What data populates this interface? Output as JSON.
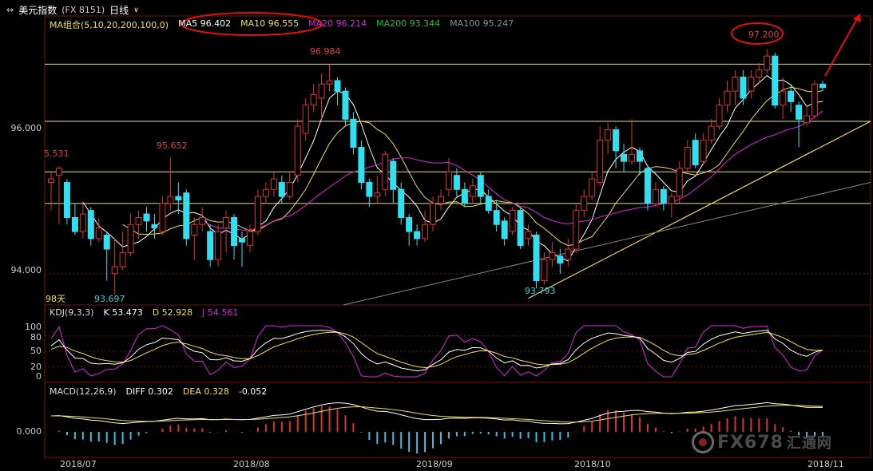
{
  "header": {
    "menu_icon": "resize-icon",
    "instrument_name": "美元指数",
    "instrument_code": "(FX 8151)",
    "period": "日线",
    "dropdown_icon": "chevron-down-icon"
  },
  "ma_legend": {
    "group_label": "MA组合(5,10,20,200,100,0)",
    "items": [
      {
        "text": "MA5 96.402",
        "color": "#ffffff"
      },
      {
        "text": "MA10 96.555",
        "color": "#f0e040"
      },
      {
        "text": "MA20 96.214",
        "color": "#e020e0"
      },
      {
        "text": "MA200 93.344",
        "color": "#20c020"
      },
      {
        "text": "MA100 95.247",
        "color": "#909090"
      }
    ]
  },
  "kdj_legend": {
    "group_label": "KDJ(9,3,3)",
    "items": [
      {
        "text": "K 53.473",
        "color": "#ffffff"
      },
      {
        "text": "D 52.928",
        "color": "#f0e040"
      },
      {
        "text": "J 54.561",
        "color": "#e020e0"
      }
    ]
  },
  "macd_legend": {
    "group_label": "MACD(12,26,9)",
    "items": [
      {
        "text": "DIFF 0.302",
        "color": "#ffffff"
      },
      {
        "text": "DEA 0.328",
        "color": "#f0e040"
      },
      {
        "text": "-0.052",
        "color": "#ffffff"
      }
    ]
  },
  "price_axis": {
    "labels": [
      "96.000",
      "94.000"
    ]
  },
  "kdj_axis": {
    "labels": [
      "100",
      "80",
      "50",
      "20",
      "0"
    ]
  },
  "macd_axis": {
    "labels": [
      "0.000"
    ]
  },
  "annotations": {
    "high_jul": "95.652",
    "left_edge": "5.531",
    "low_jul": "93.697",
    "high_aug": "96.984",
    "low_sep": "93.793",
    "high_nov": "97.200",
    "days_label": "98天"
  },
  "watermark": {
    "brand": "FX678",
    "cn": "汇通网"
  },
  "chart_data": {
    "type": "candlestick",
    "x_ticks": [
      "2018/07",
      "2018/08",
      "2018/09",
      "2018/10",
      "2018/11"
    ],
    "price_range": [
      93.6,
      97.5
    ],
    "horizontal_levels": [
      96.984,
      96.17,
      95.45,
      95.0
    ],
    "candles": [
      {
        "o": 95.3,
        "c": 95.35,
        "h": 95.45,
        "l": 94.9
      },
      {
        "o": 95.4,
        "c": 95.5,
        "h": 95.53,
        "l": 94.7
      },
      {
        "o": 95.3,
        "c": 94.8,
        "h": 95.35,
        "l": 94.7
      },
      {
        "o": 94.8,
        "c": 94.6,
        "h": 95.0,
        "l": 94.55
      },
      {
        "o": 94.6,
        "c": 94.85,
        "h": 95.0,
        "l": 94.5
      },
      {
        "o": 94.9,
        "c": 94.5,
        "h": 94.95,
        "l": 94.4
      },
      {
        "o": 94.5,
        "c": 94.65,
        "h": 94.8,
        "l": 94.45
      },
      {
        "o": 94.55,
        "c": 94.35,
        "h": 94.6,
        "l": 93.9
      },
      {
        "o": 94.0,
        "c": 94.1,
        "h": 94.5,
        "l": 93.7
      },
      {
        "o": 94.1,
        "c": 94.3,
        "h": 94.6,
        "l": 94.05
      },
      {
        "o": 94.3,
        "c": 94.7,
        "h": 94.85,
        "l": 94.25
      },
      {
        "o": 94.7,
        "c": 94.8,
        "h": 94.9,
        "l": 94.5
      },
      {
        "o": 94.85,
        "c": 94.75,
        "h": 94.95,
        "l": 94.6
      },
      {
        "o": 94.7,
        "c": 94.65,
        "h": 94.85,
        "l": 94.5
      },
      {
        "o": 94.6,
        "c": 95.0,
        "h": 95.1,
        "l": 94.55
      },
      {
        "o": 95.0,
        "c": 95.1,
        "h": 95.65,
        "l": 94.9
      },
      {
        "o": 95.1,
        "c": 95.05,
        "h": 95.3,
        "l": 94.85
      },
      {
        "o": 95.15,
        "c": 94.5,
        "h": 95.2,
        "l": 94.4
      },
      {
        "o": 94.55,
        "c": 94.7,
        "h": 94.8,
        "l": 94.2
      },
      {
        "o": 94.7,
        "c": 94.8,
        "h": 94.95,
        "l": 94.6
      },
      {
        "o": 94.6,
        "c": 94.2,
        "h": 94.7,
        "l": 94.1
      },
      {
        "o": 94.2,
        "c": 94.6,
        "h": 94.7,
        "l": 94.1
      },
      {
        "o": 94.65,
        "c": 94.8,
        "h": 94.9,
        "l": 94.3
      },
      {
        "o": 94.8,
        "c": 94.4,
        "h": 94.85,
        "l": 94.2
      },
      {
        "o": 94.5,
        "c": 94.45,
        "h": 94.6,
        "l": 94.1
      },
      {
        "o": 94.4,
        "c": 94.6,
        "h": 94.7,
        "l": 94.3
      },
      {
        "o": 94.6,
        "c": 95.1,
        "h": 95.2,
        "l": 94.55
      },
      {
        "o": 95.1,
        "c": 95.2,
        "h": 95.3,
        "l": 95.0
      },
      {
        "o": 95.2,
        "c": 95.35,
        "h": 95.45,
        "l": 95.1
      },
      {
        "o": 95.3,
        "c": 95.1,
        "h": 95.4,
        "l": 95.0
      },
      {
        "o": 95.1,
        "c": 95.3,
        "h": 95.45,
        "l": 95.05
      },
      {
        "o": 95.4,
        "c": 96.1,
        "h": 96.2,
        "l": 95.3
      },
      {
        "o": 96.0,
        "c": 96.4,
        "h": 96.5,
        "l": 95.9
      },
      {
        "o": 96.4,
        "c": 96.55,
        "h": 96.7,
        "l": 96.3
      },
      {
        "o": 96.5,
        "c": 96.7,
        "h": 96.85,
        "l": 96.2
      },
      {
        "o": 96.7,
        "c": 96.75,
        "h": 96.98,
        "l": 96.6
      },
      {
        "o": 96.75,
        "c": 96.6,
        "h": 96.8,
        "l": 96.4
      },
      {
        "o": 96.6,
        "c": 96.2,
        "h": 96.65,
        "l": 96.1
      },
      {
        "o": 96.2,
        "c": 95.8,
        "h": 96.3,
        "l": 95.7
      },
      {
        "o": 95.8,
        "c": 95.3,
        "h": 95.9,
        "l": 95.2
      },
      {
        "o": 95.3,
        "c": 95.1,
        "h": 95.35,
        "l": 94.95
      },
      {
        "o": 95.1,
        "c": 95.15,
        "h": 95.4,
        "l": 95.0
      },
      {
        "o": 95.2,
        "c": 95.7,
        "h": 95.75,
        "l": 95.1
      },
      {
        "o": 95.6,
        "c": 95.2,
        "h": 95.65,
        "l": 95.0
      },
      {
        "o": 95.2,
        "c": 94.8,
        "h": 95.3,
        "l": 94.7
      },
      {
        "o": 94.8,
        "c": 94.6,
        "h": 94.85,
        "l": 94.4
      },
      {
        "o": 94.6,
        "c": 94.5,
        "h": 94.7,
        "l": 94.4
      },
      {
        "o": 94.5,
        "c": 94.7,
        "h": 94.9,
        "l": 94.45
      },
      {
        "o": 94.7,
        "c": 95.0,
        "h": 95.1,
        "l": 94.6
      },
      {
        "o": 95.0,
        "c": 95.1,
        "h": 95.2,
        "l": 94.9
      },
      {
        "o": 95.2,
        "c": 95.45,
        "h": 95.65,
        "l": 95.1
      },
      {
        "o": 95.4,
        "c": 95.2,
        "h": 95.5,
        "l": 95.1
      },
      {
        "o": 95.2,
        "c": 95.0,
        "h": 95.3,
        "l": 94.95
      },
      {
        "o": 95.1,
        "c": 95.25,
        "h": 95.35,
        "l": 95.0
      },
      {
        "o": 95.4,
        "c": 95.1,
        "h": 95.45,
        "l": 95.0
      },
      {
        "o": 95.1,
        "c": 94.9,
        "h": 95.2,
        "l": 94.85
      },
      {
        "o": 94.9,
        "c": 94.7,
        "h": 95.05,
        "l": 94.6
      },
      {
        "o": 94.75,
        "c": 94.5,
        "h": 94.8,
        "l": 94.4
      },
      {
        "o": 94.6,
        "c": 94.9,
        "h": 94.95,
        "l": 94.55
      },
      {
        "o": 94.9,
        "c": 94.4,
        "h": 94.95,
        "l": 94.35
      },
      {
        "o": 94.5,
        "c": 94.6,
        "h": 94.7,
        "l": 94.4
      },
      {
        "o": 94.55,
        "c": 93.9,
        "h": 94.6,
        "l": 93.79
      },
      {
        "o": 93.9,
        "c": 94.2,
        "h": 94.3,
        "l": 93.85
      },
      {
        "o": 94.2,
        "c": 94.3,
        "h": 94.45,
        "l": 94.1
      },
      {
        "o": 94.25,
        "c": 94.15,
        "h": 94.35,
        "l": 94.0
      },
      {
        "o": 94.2,
        "c": 94.35,
        "h": 94.5,
        "l": 94.1
      },
      {
        "o": 94.35,
        "c": 94.9,
        "h": 95.0,
        "l": 94.3
      },
      {
        "o": 94.9,
        "c": 95.1,
        "h": 95.2,
        "l": 94.8
      },
      {
        "o": 95.1,
        "c": 95.35,
        "h": 95.45,
        "l": 95.05
      },
      {
        "o": 95.3,
        "c": 95.9,
        "h": 96.1,
        "l": 95.25
      },
      {
        "o": 95.9,
        "c": 96.05,
        "h": 96.15,
        "l": 95.7
      },
      {
        "o": 96.05,
        "c": 95.75,
        "h": 96.1,
        "l": 95.5
      },
      {
        "o": 95.7,
        "c": 95.6,
        "h": 95.85,
        "l": 95.45
      },
      {
        "o": 95.6,
        "c": 95.7,
        "h": 96.2,
        "l": 95.55
      },
      {
        "o": 95.75,
        "c": 95.6,
        "h": 95.8,
        "l": 95.4
      },
      {
        "o": 95.5,
        "c": 95.0,
        "h": 95.55,
        "l": 94.9
      },
      {
        "o": 95.0,
        "c": 95.2,
        "h": 95.3,
        "l": 94.95
      },
      {
        "o": 95.2,
        "c": 95.0,
        "h": 95.25,
        "l": 94.9
      },
      {
        "o": 95.0,
        "c": 95.1,
        "h": 95.15,
        "l": 94.8
      },
      {
        "o": 95.1,
        "c": 95.5,
        "h": 95.6,
        "l": 95.0
      },
      {
        "o": 95.5,
        "c": 95.8,
        "h": 95.9,
        "l": 95.45
      },
      {
        "o": 95.9,
        "c": 95.55,
        "h": 96.0,
        "l": 95.5
      },
      {
        "o": 95.6,
        "c": 95.9,
        "h": 96.0,
        "l": 95.55
      },
      {
        "o": 95.9,
        "c": 96.1,
        "h": 96.2,
        "l": 95.85
      },
      {
        "o": 96.1,
        "c": 96.4,
        "h": 96.5,
        "l": 96.05
      },
      {
        "o": 96.4,
        "c": 96.6,
        "h": 96.75,
        "l": 96.3
      },
      {
        "o": 96.6,
        "c": 96.8,
        "h": 96.9,
        "l": 96.4
      },
      {
        "o": 96.8,
        "c": 96.5,
        "h": 96.9,
        "l": 96.4
      },
      {
        "o": 96.6,
        "c": 96.8,
        "h": 96.9,
        "l": 96.5
      },
      {
        "o": 96.8,
        "c": 96.9,
        "h": 97.0,
        "l": 96.7
      },
      {
        "o": 96.9,
        "c": 97.1,
        "h": 97.2,
        "l": 96.85
      },
      {
        "o": 97.1,
        "c": 96.4,
        "h": 97.15,
        "l": 96.35
      },
      {
        "o": 96.4,
        "c": 96.6,
        "h": 96.8,
        "l": 96.2
      },
      {
        "o": 96.6,
        "c": 96.45,
        "h": 96.7,
        "l": 96.3
      },
      {
        "o": 96.4,
        "c": 96.2,
        "h": 96.45,
        "l": 95.8
      },
      {
        "o": 96.15,
        "c": 96.25,
        "h": 96.4,
        "l": 96.1
      },
      {
        "o": 96.25,
        "c": 96.7,
        "h": 96.75,
        "l": 96.2
      },
      {
        "o": 96.7,
        "c": 96.65,
        "h": 96.75,
        "l": 96.6
      }
    ]
  }
}
